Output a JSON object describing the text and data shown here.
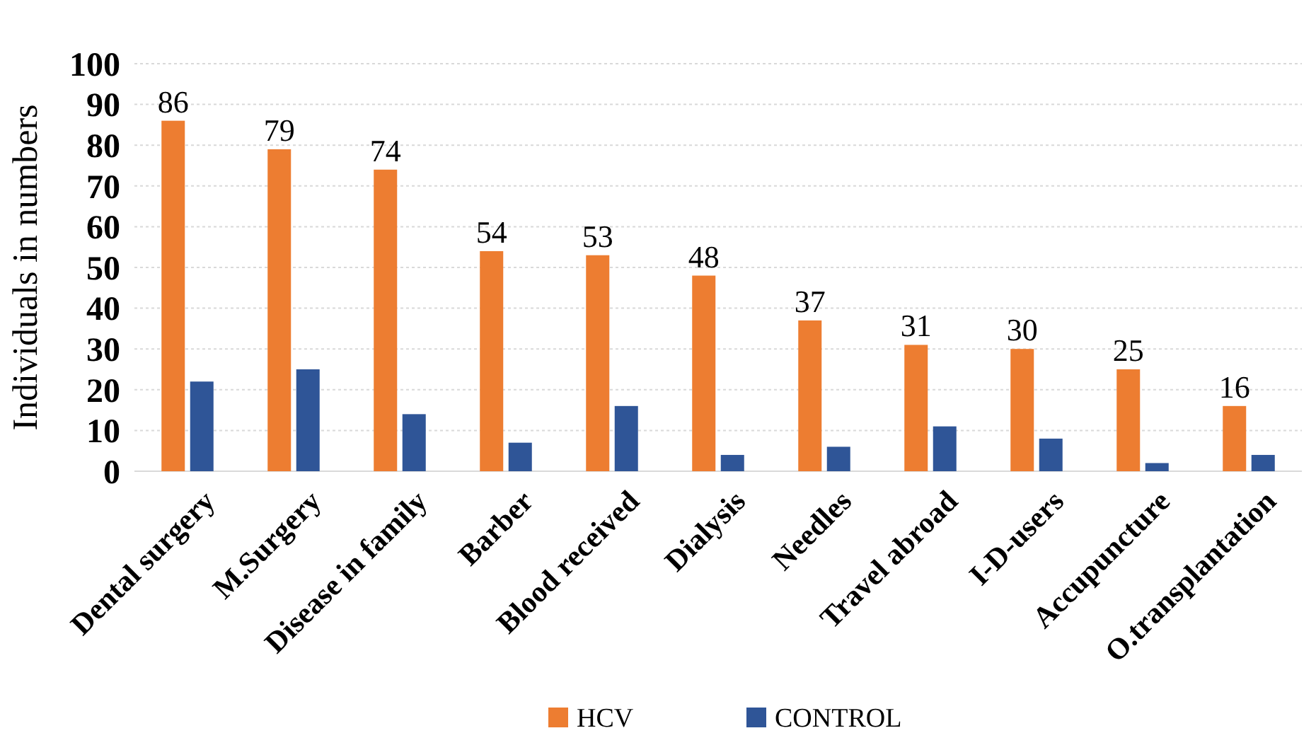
{
  "chart_data": {
    "type": "bar",
    "ylabel": "Individuals in numbers",
    "categories": [
      "Dental surgery",
      "M.Surgery",
      "Disease in family",
      "Barber",
      "Blood received",
      "Dialysis",
      "Needles",
      "Travel abroad",
      "I-D-users",
      "Accupuncture",
      "O.transplantation"
    ],
    "series": [
      {
        "name": "HCV",
        "color": "#ed7d31",
        "values": [
          86,
          79,
          74,
          54,
          53,
          48,
          37,
          31,
          30,
          25,
          16
        ],
        "value_labels": [
          "86",
          "79",
          "74",
          "54",
          "53",
          "48",
          "37",
          "31",
          "30",
          "25",
          "16"
        ]
      },
      {
        "name": "CONTROL",
        "color": "#2f5597",
        "values": [
          22,
          25,
          14,
          7,
          16,
          4,
          6,
          11,
          8,
          2,
          4
        ]
      }
    ],
    "ylim": [
      0,
      100
    ],
    "yticks": [
      0,
      10,
      20,
      30,
      40,
      50,
      60,
      70,
      80,
      90,
      100
    ],
    "grid": "y",
    "legend": "bottom"
  }
}
